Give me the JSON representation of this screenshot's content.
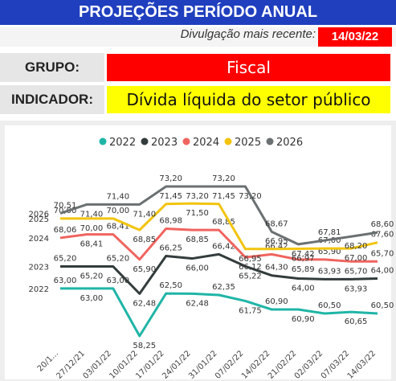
{
  "header": {
    "title": "PROJEÇÕES PERÍODO ANUAL"
  },
  "release": {
    "label": "Divulgação mais recente:",
    "date": "14/03/22"
  },
  "group": {
    "label": "GRUPO:",
    "value": "Fiscal"
  },
  "indicator": {
    "label": "INDICADOR:",
    "value": "Dívida líquida do setor público"
  },
  "chart_data": {
    "type": "line",
    "categories": [
      "20/1...",
      "27/12/21",
      "03/01/22",
      "10/01/22",
      "17/01/22",
      "24/01/22",
      "31/01/22",
      "07/02/22",
      "14/02/22",
      "21/02/22",
      "02/03/22",
      "07/03/22",
      "14/03/22"
    ],
    "series": [
      {
        "name": "2022",
        "color": "#1fb5a6",
        "values": [
          63.0,
          63.0,
          63.0,
          58.25,
          62.5,
          62.48,
          62.35,
          61.75,
          60.9,
          60.9,
          60.5,
          60.65,
          60.5
        ],
        "value_labels": [
          "63,00",
          "63,00",
          "63,00",
          "58,25",
          "62,50",
          "62,48",
          "62,35",
          "61,75",
          "60,90",
          "60,90",
          "60,50",
          "60,65",
          "60,50"
        ]
      },
      {
        "name": "2023",
        "color": "#333c3c",
        "values": [
          65.2,
          65.2,
          65.2,
          62.48,
          66.25,
          66.0,
          66.42,
          65.22,
          64.3,
          64.0,
          63.93,
          63.93,
          64.0
        ],
        "value_labels": [
          "65,20",
          "65,20",
          "65,20",
          "62,48",
          "66,25",
          "66,00",
          "66,42",
          "65,22",
          "64,30",
          "64,00",
          "63,93",
          "63,93",
          "64,00"
        ]
      },
      {
        "name": "2024",
        "color": "#f0645f",
        "values": [
          68.06,
          68.41,
          68.41,
          65.9,
          68.98,
          68.85,
          68.85,
          66.12,
          66.42,
          65.89,
          65.9,
          65.7,
          65.7
        ],
        "value_labels": [
          "68,06",
          "68,41",
          "68,41",
          "65,90",
          "68,98",
          "68,85",
          "68,85",
          "66,12",
          "66,42",
          "65,89",
          "65,90",
          "65,70",
          "65,70"
        ]
      },
      {
        "name": "2025",
        "color": "#f2c40f",
        "values": [
          70.0,
          70.0,
          70.0,
          68.85,
          71.45,
          71.5,
          71.45,
          66.95,
          66.95,
          66.97,
          67.0,
          67.0,
          67.6
        ],
        "value_labels": [
          "70,00",
          "70,00",
          "70,00",
          "68,85",
          "71,45",
          "71,50",
          "71,45",
          "66,95",
          "66,95",
          "66,97",
          "67,00",
          "67,00",
          "67,60"
        ]
      },
      {
        "name": "2026",
        "color": "#6b7072",
        "values": [
          70.51,
          71.4,
          71.4,
          71.4,
          73.2,
          73.2,
          73.2,
          73.2,
          68.67,
          67.42,
          67.81,
          68.2,
          68.6
        ],
        "value_labels": [
          "70,51",
          "71,40",
          "71,40",
          "71,40",
          "73,20",
          "73,20",
          "73,20",
          "73,20",
          "68,67",
          "67,42",
          "67,81",
          "68,20",
          "68,60"
        ]
      }
    ]
  }
}
